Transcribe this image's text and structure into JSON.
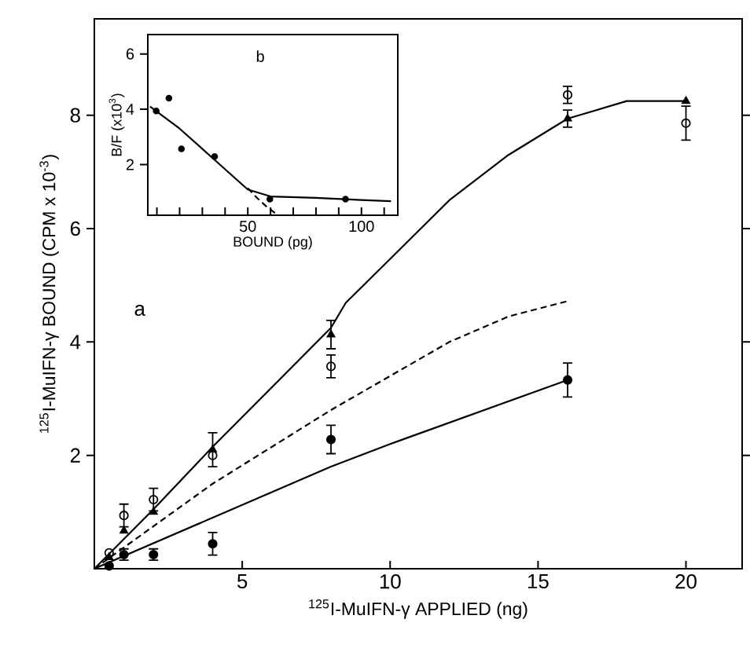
{
  "chart_data": [
    {
      "type": "scatter",
      "xlabel": "$^{125}$I-MuIFN-γ APPLIED (ng)",
      "ylabel": "$^{125}$I-MuIFN-γ BOUND (CPM x 10$^{-3}$)",
      "annotations": [
        "a"
      ],
      "xlim": [
        0,
        21.9
      ],
      "ylim": [
        0,
        9.7
      ],
      "xticks": [
        5,
        10,
        15,
        20
      ],
      "yticks": [
        2,
        4,
        6,
        8
      ],
      "series": [
        {
          "marker": "open circle",
          "color": "#000000",
          "x": [
            0.5,
            1,
            2,
            4,
            8,
            16,
            20
          ],
          "values": [
            0.28,
            0.94,
            1.22,
            2.0,
            3.57,
            8.36,
            7.86
          ],
          "errors": [
            null,
            0.2,
            0.2,
            null,
            0.2,
            0.15,
            0.3
          ]
        },
        {
          "marker": "triangle",
          "color": "#000000",
          "x": [
            0.5,
            1,
            2,
            4,
            8,
            16,
            20
          ],
          "values": [
            0.2,
            0.67,
            1.0,
            2.1,
            4.13,
            7.94,
            8.25
          ],
          "errors": [
            null,
            null,
            null,
            0.3,
            0.25,
            0.15,
            null
          ]
        },
        {
          "marker": "circle",
          "color": "#000000",
          "x": [
            0.5,
            1,
            2,
            4,
            8,
            16
          ],
          "values": [
            0.05,
            0.25,
            0.25,
            0.44,
            2.28,
            3.33
          ],
          "errors": [
            null,
            0.1,
            0.1,
            0.2,
            0.25,
            0.3
          ]
        },
        {
          "type": "line",
          "line_style": "solid",
          "color": "#000000",
          "x": [
            0,
            2,
            4,
            8,
            8.5,
            12,
            14,
            16,
            18,
            20
          ],
          "values": [
            0,
            1.05,
            2.15,
            4.25,
            4.69,
            6.5,
            7.3,
            7.94,
            8.25,
            8.25
          ]
        },
        {
          "type": "line",
          "line_style": "dashed",
          "color": "#000000",
          "x": [
            0,
            2,
            4,
            8,
            10,
            12,
            14,
            16
          ],
          "values": [
            0,
            0.75,
            1.5,
            2.8,
            3.4,
            4.0,
            4.45,
            4.72
          ]
        },
        {
          "type": "line",
          "line_style": "solid",
          "color": "#000000",
          "x": [
            0,
            4,
            8,
            10,
            16
          ],
          "values": [
            0,
            0.9,
            1.8,
            2.2,
            3.33
          ]
        }
      ]
    },
    {
      "type": "scatter",
      "xlabel": "BOUND (pg)",
      "ylabel": "B/F (x10$^{3}$)",
      "annotations": [
        "b"
      ],
      "xlim": [
        6,
        116
      ],
      "ylim": [
        0.17,
        6.7
      ],
      "xticks": [
        {
          "value": 10,
          "label": null
        },
        {
          "value": 20,
          "label": null
        },
        {
          "value": 30,
          "label": null
        },
        {
          "value": 40,
          "label": null
        },
        50,
        {
          "value": 60,
          "label": null
        },
        {
          "value": 70,
          "label": null
        },
        {
          "value": 80,
          "label": null
        },
        {
          "value": 90,
          "label": null
        },
        100,
        {
          "value": 110,
          "label": null
        }
      ],
      "yticks": [
        2,
        4,
        6
      ],
      "series": [
        {
          "marker": "circle",
          "color": "#000000",
          "x": [
            9.7,
            15.3,
            20.8,
            35.4,
            59.7,
            93
          ],
          "values": [
            3.94,
            4.4,
            2.57,
            2.29,
            0.75,
            0.75
          ]
        },
        {
          "type": "line",
          "line_style": "solid",
          "color": "#000000",
          "x": [
            7,
            20,
            35,
            50,
            60,
            80,
            100,
            113
          ],
          "values": [
            4.1,
            3.3,
            2.2,
            1.1,
            0.85,
            0.8,
            0.72,
            0.68
          ]
        },
        {
          "type": "line",
          "line_style": "dashed",
          "color": "#000000",
          "x": [
            50,
            54,
            58,
            62
          ],
          "values": [
            1.15,
            0.8,
            0.5,
            0.25
          ]
        }
      ]
    }
  ]
}
